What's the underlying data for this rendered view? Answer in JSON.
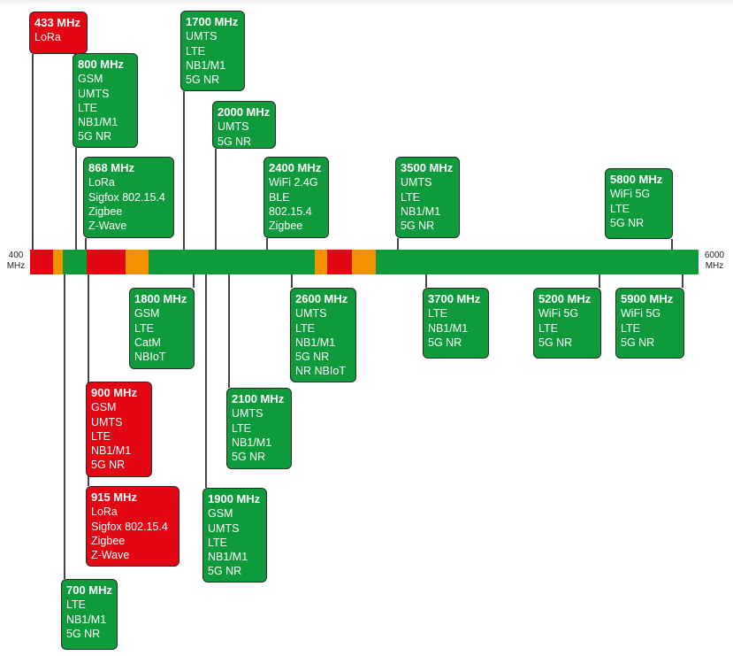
{
  "colors": {
    "licensed": "#0f9a3c",
    "unlicensed": "#e30613",
    "guard": "#f39200"
  },
  "axis": {
    "start_label": "400\nMHz",
    "end_label": "6000\nMHz"
  },
  "bar_segments": [
    "unlicensed",
    "guard",
    "licensed",
    "unlicensed",
    "guard",
    "licensed",
    "guard",
    "unlicensed",
    "guard",
    "licensed"
  ],
  "bands": [
    {
      "freq": "433 MHz",
      "tech": [
        "LoRa"
      ],
      "type": "unlicensed"
    },
    {
      "freq": "800 MHz",
      "tech": [
        "GSM",
        "UMTS",
        "LTE",
        "NB1/M1",
        "5G NR"
      ],
      "type": "licensed"
    },
    {
      "freq": "868 MHz",
      "tech": [
        "LoRa",
        "Sigfox 802.15.4",
        "Zigbee",
        "Z-Wave"
      ],
      "type": "licensed"
    },
    {
      "freq": "1700 MHz",
      "tech": [
        "UMTS",
        "LTE",
        "NB1/M1",
        "5G NR"
      ],
      "type": "licensed"
    },
    {
      "freq": "2000 MHz",
      "tech": [
        "UMTS",
        "5G NR"
      ],
      "type": "licensed"
    },
    {
      "freq": "2400 MHz",
      "tech": [
        "WiFi 2.4G",
        "BLE",
        "802.15.4",
        "Zigbee"
      ],
      "type": "licensed"
    },
    {
      "freq": "3500 MHz",
      "tech": [
        "UMTS",
        "LTE",
        "NB1/M1",
        "5G NR"
      ],
      "type": "licensed"
    },
    {
      "freq": "5800 MHz",
      "tech": [
        "WiFi 5G",
        "LTE",
        "5G NR"
      ],
      "type": "licensed"
    },
    {
      "freq": "1800 MHz",
      "tech": [
        "GSM",
        "LTE",
        "CatM",
        "NBIoT"
      ],
      "type": "licensed"
    },
    {
      "freq": "900 MHz",
      "tech": [
        "GSM",
        "UMTS",
        "LTE",
        "NB1/M1",
        "5G NR"
      ],
      "type": "unlicensed"
    },
    {
      "freq": "915 MHz",
      "tech": [
        "LoRa",
        "Sigfox 802.15.4",
        "Zigbee",
        "Z-Wave"
      ],
      "type": "unlicensed"
    },
    {
      "freq": "700 MHz",
      "tech": [
        "LTE",
        "NB1/M1",
        "5G NR"
      ],
      "type": "licensed"
    },
    {
      "freq": "1900 MHz",
      "tech": [
        "GSM",
        "UMTS",
        "LTE",
        "NB1/M1",
        "5G NR"
      ],
      "type": "licensed"
    },
    {
      "freq": "2100 MHz",
      "tech": [
        "UMTS",
        "LTE",
        "NB1/M1",
        "5G NR"
      ],
      "type": "licensed"
    },
    {
      "freq": "2600 MHz",
      "tech": [
        "UMTS",
        "LTE",
        "NB1/M1",
        "5G NR",
        "NR NBIoT"
      ],
      "type": "licensed"
    },
    {
      "freq": "3700 MHz",
      "tech": [
        "LTE",
        "NB1/M1",
        "5G NR"
      ],
      "type": "licensed"
    },
    {
      "freq": "5200 MHz",
      "tech": [
        "WiFi 5G",
        "LTE",
        "5G NR"
      ],
      "type": "licensed"
    },
    {
      "freq": "5900 MHz",
      "tech": [
        "WiFi 5G",
        "LTE",
        "5G NR"
      ],
      "type": "licensed"
    }
  ]
}
